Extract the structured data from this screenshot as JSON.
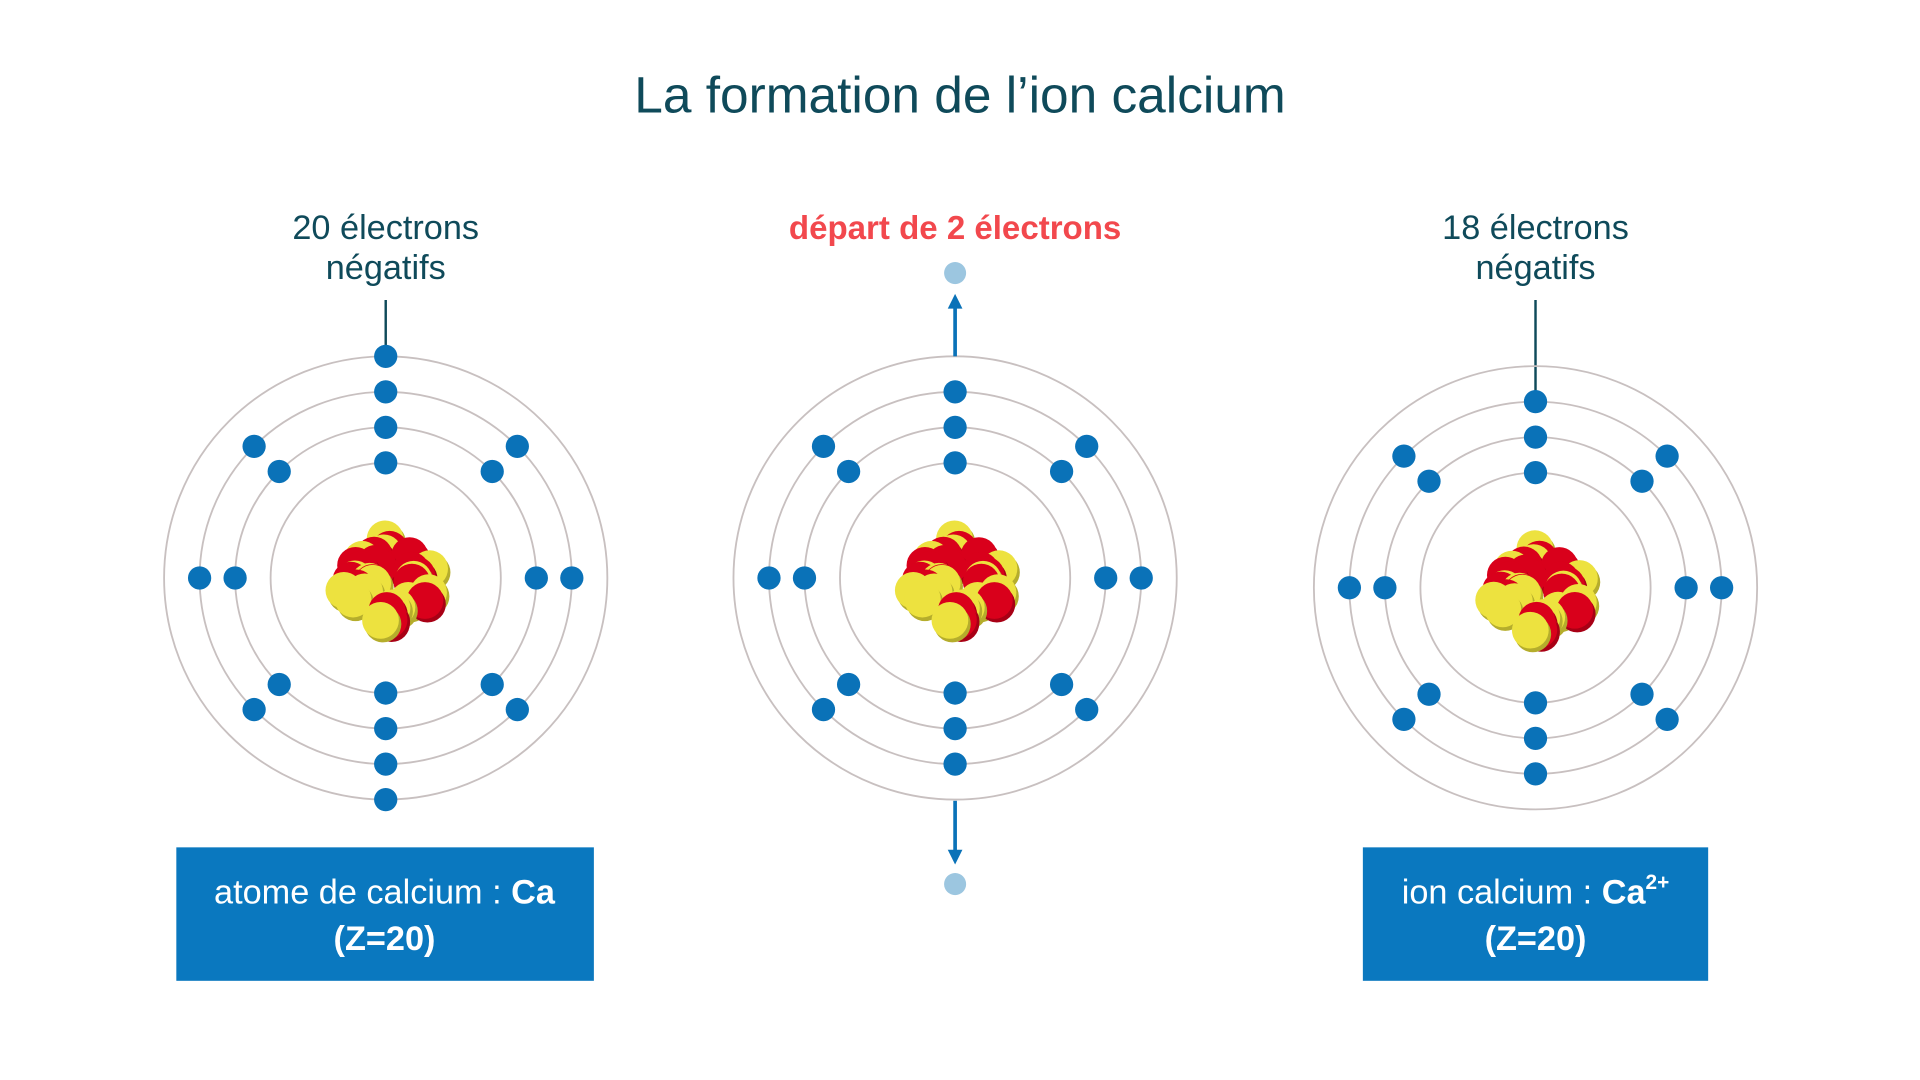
{
  "title": "La formation de l’ion calcium",
  "colors": {
    "electron": "#0a72b8",
    "departed_electron": "#9cc6e0",
    "orbit": "#c8c0c0",
    "proton": "#d9001b",
    "neutron": "#ede23f",
    "box": "#0a78bf",
    "title": "#0f4a5a",
    "highlight": "#f2484d"
  },
  "atom": {
    "label_line1": "20 électrons",
    "label_line2": "négatifs",
    "shells": [
      2,
      8,
      8,
      2
    ],
    "box_text": "atome de calcium : ",
    "box_symbol": "Ca",
    "box_z": "(Z=20)"
  },
  "transition": {
    "label": "départ de 2 électrons",
    "shells": [
      2,
      8,
      8,
      0
    ],
    "departed": 2
  },
  "ion": {
    "label_line1": "18 électrons",
    "label_line2": "négatifs",
    "shells": [
      2,
      8,
      8,
      0
    ],
    "box_text": "ion calcium : ",
    "box_symbol": "Ca",
    "box_charge": "2+",
    "box_z": "(Z=20)"
  }
}
